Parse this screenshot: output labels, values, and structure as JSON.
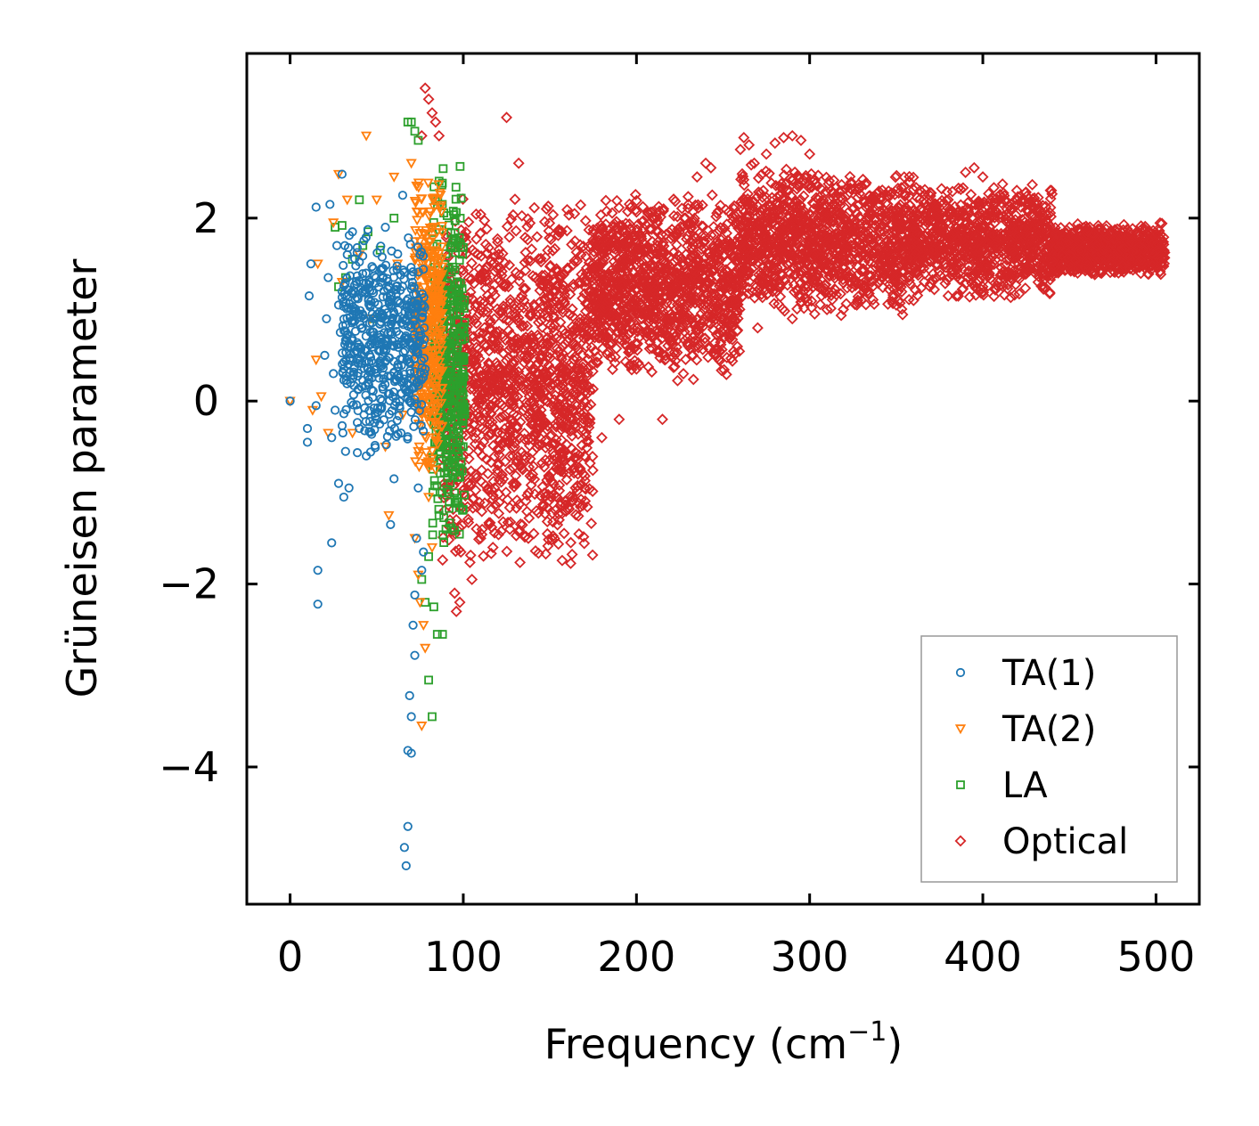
{
  "chart_data": {
    "type": "scatter",
    "xlabel": "Frequency (cm",
    "xlabel_sup": "−1",
    "xlabel_close": ")",
    "ylabel": "Grüneisen parameter",
    "xlim": [
      -25,
      525
    ],
    "ylim": [
      -5.5,
      3.8
    ],
    "xticks": [
      0,
      100,
      200,
      300,
      400,
      500
    ],
    "xtick_labels": [
      "0",
      "100",
      "200",
      "300",
      "400",
      "500"
    ],
    "yticks": [
      2,
      0,
      -2,
      -4
    ],
    "ytick_labels": [
      "2",
      "0",
      "−2",
      "−4"
    ],
    "legend_position": "lower-right",
    "series": [
      {
        "name": "TA(1)",
        "marker": "circle",
        "color": "#1f77b4",
        "points": [
          [
            0,
            0
          ],
          [
            10,
            -0.3
          ],
          [
            10,
            -0.45
          ],
          [
            11,
            1.15
          ],
          [
            12,
            1.5
          ],
          [
            15,
            -0.05
          ],
          [
            15,
            2.12
          ],
          [
            16,
            -1.85
          ],
          [
            16,
            -2.22
          ],
          [
            20,
            0.5
          ],
          [
            21,
            0.9
          ],
          [
            22,
            1.35
          ],
          [
            23,
            2.15
          ],
          [
            24,
            -1.55
          ],
          [
            24,
            -0.4
          ],
          [
            25,
            0.3
          ],
          [
            26,
            -0.1
          ],
          [
            27,
            1.7
          ],
          [
            28,
            -0.9
          ],
          [
            28,
            1.05
          ],
          [
            29,
            0.75
          ],
          [
            30,
            2.48
          ],
          [
            30,
            1.2
          ],
          [
            31,
            -1.05
          ],
          [
            32,
            -0.55
          ],
          [
            33,
            1.6
          ],
          [
            34,
            -0.95
          ],
          [
            35,
            0.2
          ],
          [
            36,
            1.85
          ],
          [
            38,
            0.55
          ],
          [
            40,
            -0.3
          ],
          [
            42,
            1.2
          ],
          [
            44,
            -0.6
          ],
          [
            46,
            0.85
          ],
          [
            48,
            1.45
          ],
          [
            50,
            -0.2
          ],
          [
            52,
            0.4
          ],
          [
            55,
            1.9
          ],
          [
            58,
            -1.35
          ],
          [
            60,
            -0.85
          ],
          [
            60,
            0.6
          ],
          [
            62,
            1.1
          ],
          [
            64,
            -0.35
          ],
          [
            65,
            2.25
          ],
          [
            66,
            -4.88
          ],
          [
            67,
            -5.08
          ],
          [
            68,
            -3.82
          ],
          [
            68,
            -4.65
          ],
          [
            69,
            -3.22
          ],
          [
            70,
            -3.85
          ],
          [
            70,
            -3.45
          ],
          [
            71,
            -2.45
          ],
          [
            72,
            -2.78
          ],
          [
            72,
            -2.12
          ],
          [
            73,
            -1.5
          ],
          [
            74,
            -0.95
          ],
          [
            75,
            1.6
          ],
          [
            76,
            -1.85
          ],
          [
            77,
            -1.65
          ],
          [
            78,
            0.35
          ]
        ],
        "dense": {
          "x": [
            30,
            78
          ],
          "y": [
            -0.6,
            1.95
          ],
          "n": 520
        }
      },
      {
        "name": "TA(2)",
        "marker": "triangle-down",
        "color": "#ff7f0e",
        "points": [
          [
            0,
            0
          ],
          [
            13,
            -0.1
          ],
          [
            15,
            0.45
          ],
          [
            16,
            1.5
          ],
          [
            18,
            0.05
          ],
          [
            22,
            -0.35
          ],
          [
            25,
            1.95
          ],
          [
            28,
            2.48
          ],
          [
            30,
            1.3
          ],
          [
            33,
            2.2
          ],
          [
            36,
            -0.35
          ],
          [
            40,
            1.6
          ],
          [
            44,
            2.9
          ],
          [
            46,
            0.9
          ],
          [
            50,
            2.2
          ],
          [
            55,
            -0.5
          ],
          [
            57,
            -1.25
          ],
          [
            60,
            2.45
          ],
          [
            62,
            1.5
          ],
          [
            65,
            -0.15
          ],
          [
            70,
            2.6
          ],
          [
            72,
            -1.5
          ],
          [
            74,
            -1.9
          ],
          [
            75,
            -2.2
          ],
          [
            76,
            -3.55
          ],
          [
            77,
            -2.45
          ],
          [
            78,
            -2.7
          ],
          [
            80,
            -1.05
          ],
          [
            82,
            -1.6
          ],
          [
            84,
            -0.75
          ]
        ],
        "dense": {
          "x": [
            72,
            88
          ],
          "y": [
            -0.9,
            2.6
          ],
          "n": 380
        }
      },
      {
        "name": "LA",
        "marker": "square",
        "color": "#2ca02c",
        "points": [
          [
            26,
            1.9
          ],
          [
            28,
            1.25
          ],
          [
            30,
            1.92
          ],
          [
            32,
            1.35
          ],
          [
            36,
            1.55
          ],
          [
            40,
            2.2
          ],
          [
            42,
            1.7
          ],
          [
            45,
            1.85
          ],
          [
            48,
            0.9
          ],
          [
            52,
            1.65
          ],
          [
            60,
            2.0
          ],
          [
            68,
            3.05
          ],
          [
            70,
            3.05
          ],
          [
            72,
            2.95
          ],
          [
            74,
            2.85
          ],
          [
            76,
            -1.95
          ],
          [
            78,
            -2.2
          ],
          [
            80,
            -3.05
          ],
          [
            80,
            -1.7
          ],
          [
            82,
            -3.45
          ],
          [
            83,
            -2.25
          ],
          [
            85,
            -2.55
          ],
          [
            86,
            -1.25
          ],
          [
            88,
            -2.55
          ],
          [
            90,
            -1.4
          ],
          [
            92,
            0.3
          ],
          [
            94,
            -0.8
          ],
          [
            96,
            -0.4
          ]
        ],
        "dense": {
          "x": [
            82,
            101
          ],
          "y": [
            -1.7,
            2.6
          ],
          "n": 420
        }
      },
      {
        "name": "Optical",
        "marker": "diamond",
        "color": "#d62728",
        "points": [
          [
            76,
            2.9
          ],
          [
            78,
            3.42
          ],
          [
            80,
            3.3
          ],
          [
            82,
            3.15
          ],
          [
            84,
            3.05
          ],
          [
            86,
            2.9
          ],
          [
            125,
            3.1
          ],
          [
            132,
            2.6
          ],
          [
            148,
            2.1
          ],
          [
            155,
            1.85
          ],
          [
            168,
            1.6
          ],
          [
            175,
            1.5
          ],
          [
            182,
            1.75
          ],
          [
            190,
            -0.2
          ],
          [
            200,
            0.35
          ],
          [
            210,
            2.0
          ],
          [
            230,
            2.15
          ],
          [
            235,
            2.45
          ],
          [
            240,
            2.6
          ],
          [
            243,
            2.55
          ],
          [
            260,
            2.75
          ],
          [
            262,
            2.88
          ],
          [
            265,
            2.8
          ],
          [
            268,
            2.6
          ],
          [
            275,
            2.7
          ],
          [
            280,
            2.82
          ],
          [
            285,
            2.88
          ],
          [
            290,
            2.9
          ],
          [
            295,
            2.85
          ],
          [
            300,
            2.7
          ],
          [
            330,
            2.35
          ],
          [
            350,
            2.1
          ],
          [
            360,
            2.0
          ],
          [
            380,
            2.2
          ],
          [
            390,
            2.5
          ],
          [
            395,
            2.55
          ],
          [
            400,
            2.45
          ],
          [
            420,
            2.2
          ],
          [
            430,
            2.0
          ],
          [
            450,
            1.9
          ],
          [
            470,
            1.85
          ],
          [
            490,
            1.8
          ],
          [
            500,
            1.7
          ],
          [
            110,
            -1.5
          ],
          [
            115,
            -1.35
          ],
          [
            95,
            -2.1
          ],
          [
            96,
            -2.3
          ],
          [
            98,
            -2.2
          ],
          [
            105,
            -1.95
          ],
          [
            120,
            -0.7
          ],
          [
            130,
            -0.9
          ],
          [
            140,
            -0.8
          ],
          [
            150,
            -0.5
          ],
          [
            160,
            -0.3
          ],
          [
            170,
            -0.6
          ],
          [
            180,
            -0.4
          ],
          [
            215,
            -0.2
          ],
          [
            230,
            0.6
          ],
          [
            250,
            0.9
          ],
          [
            270,
            0.8
          ],
          [
            290,
            0.9
          ],
          [
            310,
            1.0
          ],
          [
            330,
            1.1
          ],
          [
            350,
            1.05
          ],
          [
            360,
            1.1
          ],
          [
            380,
            1.15
          ],
          [
            400,
            1.25
          ],
          [
            420,
            1.35
          ]
        ],
        "dense_regions": [
          {
            "x": [
              88,
              175
            ],
            "y": [
              -1.9,
              2.3
            ],
            "n": 1400
          },
          {
            "x": [
              175,
              260
            ],
            "y": [
              0.2,
              2.3
            ],
            "n": 1200
          },
          {
            "x": [
              260,
              360
            ],
            "y": [
              0.9,
              2.6
            ],
            "n": 1200
          },
          {
            "x": [
              360,
              440
            ],
            "y": [
              1.1,
              2.4
            ],
            "n": 900
          },
          {
            "x": [
              440,
              505
            ],
            "y": [
              1.35,
              1.95
            ],
            "n": 900
          }
        ]
      }
    ]
  }
}
